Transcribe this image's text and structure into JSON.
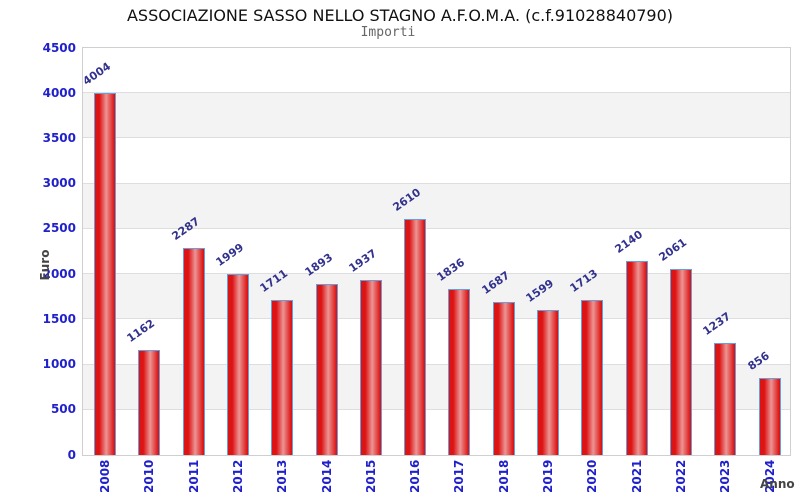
{
  "header": {
    "title": "ASSOCIAZIONE SASSO NELLO STAGNO A.F.O.M.A. (c.f.91028840790)",
    "subtitle": "Importi"
  },
  "chart_data": {
    "type": "bar",
    "title": "ASSOCIAZIONE SASSO NELLO STAGNO A.F.O.M.A. (c.f.91028840790)",
    "subtitle": "Importi",
    "xlabel": "Anno",
    "ylabel": "Euro",
    "categories": [
      "2008",
      "2010",
      "2011",
      "2012",
      "2013",
      "2014",
      "2015",
      "2016",
      "2017",
      "2018",
      "2019",
      "2020",
      "2021",
      "2022",
      "2023",
      "2024"
    ],
    "values": [
      4004,
      1162,
      2287,
      1999,
      1711,
      1893,
      1937,
      2610,
      1836,
      1687,
      1599,
      1713,
      2140,
      2061,
      1237,
      856
    ],
    "ylim": [
      0,
      4500
    ],
    "ytick_step": 500,
    "grid": true,
    "legend": "none",
    "colors": {
      "bar_main": "#dd1414",
      "bar_highlight": "#ec9494",
      "bar_border": "#62a0e0",
      "tick_label": "#2121cc",
      "value_label": "#32328e",
      "band": "#f3f3f3",
      "gridline": "#dedede",
      "plot_border": "#cfcfcf",
      "axis_title": "#444444",
      "title": "#111111",
      "subtitle": "#666666"
    }
  }
}
